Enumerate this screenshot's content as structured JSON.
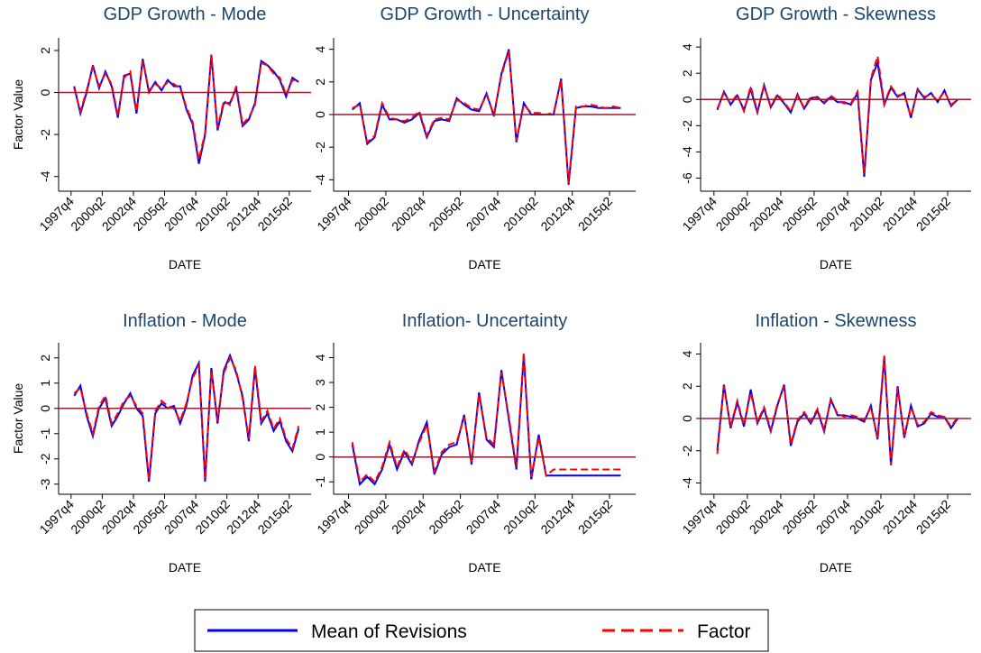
{
  "chart_data": [
    {
      "type": "line",
      "title": "GDP Growth - Mode",
      "ylabel": "Factor Value",
      "xlabel": "DATE",
      "x": [
        "1998q1",
        "1998q3",
        "1999q1",
        "1999q3",
        "2000q1",
        "2000q3",
        "2001q1",
        "2001q3",
        "2002q1",
        "2002q3",
        "2003q1",
        "2003q3",
        "2004q1",
        "2004q3",
        "2005q1",
        "2005q3",
        "2006q1",
        "2006q3",
        "2007q1",
        "2007q3",
        "2008q1",
        "2008q3",
        "2009q1",
        "2009q3",
        "2010q1",
        "2010q3",
        "2011q1",
        "2011q3",
        "2012q1",
        "2012q3",
        "2013q1",
        "2013q3",
        "2014q1",
        "2014q3",
        "2015q1",
        "2015q3",
        "2016q1"
      ],
      "xlim": [
        "1996q4",
        "2017q1"
      ],
      "xticks": [
        "1997q4",
        "2000q2",
        "2002q4",
        "2005q2",
        "2007q4",
        "2010q2",
        "2012q4",
        "2015q2"
      ],
      "ylim": [
        -4.7,
        2.6
      ],
      "yticks": [
        -4,
        -2,
        0,
        2
      ],
      "series": [
        {
          "name": "Mean of Revisions",
          "color": "#0000ff",
          "values": [
            0.3,
            -1.0,
            0.0,
            1.3,
            0.2,
            1.0,
            0.3,
            -1.2,
            0.8,
            0.9,
            -1.0,
            1.6,
            0.0,
            0.5,
            0.1,
            0.6,
            0.3,
            0.3,
            -0.8,
            -1.5,
            -3.4,
            -2.0,
            1.8,
            -1.8,
            -0.5,
            -0.5,
            0.2,
            -1.6,
            -1.3,
            -0.5,
            1.5,
            1.3,
            1.0,
            0.6,
            -0.2,
            0.7,
            0.5
          ]
        },
        {
          "name": "Factor",
          "color": "#ff0000",
          "values": [
            0.2,
            -0.9,
            0.1,
            1.2,
            0.3,
            0.9,
            0.4,
            -1.1,
            0.7,
            1.0,
            -0.9,
            1.5,
            0.1,
            0.4,
            0.2,
            0.5,
            0.4,
            0.2,
            -0.7,
            -1.4,
            -3.2,
            -1.9,
            1.8,
            -1.7,
            -0.4,
            -0.6,
            0.3,
            -1.5,
            -1.2,
            -0.6,
            1.4,
            1.3,
            0.9,
            0.7,
            -0.1,
            0.6,
            0.5
          ]
        }
      ]
    },
    {
      "type": "line",
      "title": "GDP Growth - Uncertainty",
      "xlabel": "DATE",
      "x": [
        "1998q1",
        "1998q3",
        "1999q1",
        "1999q3",
        "2000q1",
        "2000q3",
        "2001q1",
        "2001q3",
        "2002q1",
        "2002q3",
        "2003q1",
        "2003q3",
        "2004q1",
        "2004q3",
        "2005q1",
        "2005q3",
        "2006q1",
        "2006q3",
        "2007q1",
        "2007q3",
        "2008q1",
        "2008q3",
        "2009q1",
        "2009q3",
        "2010q1",
        "2010q3",
        "2011q1",
        "2011q3",
        "2012q1",
        "2012q3",
        "2013q1",
        "2013q3",
        "2014q1",
        "2014q3",
        "2015q1",
        "2015q3",
        "2016q1"
      ],
      "xlim": [
        "1996q4",
        "2017q1"
      ],
      "xticks": [
        "1997q4",
        "2000q2",
        "2002q4",
        "2005q2",
        "2007q4",
        "2010q2",
        "2012q4",
        "2015q2"
      ],
      "ylim": [
        -4.7,
        4.7
      ],
      "yticks": [
        -4,
        -2,
        0,
        2,
        4
      ],
      "series": [
        {
          "color": "#0000ff",
          "values": [
            0.3,
            0.7,
            -1.8,
            -1.4,
            0.6,
            -0.3,
            -0.3,
            -0.5,
            -0.3,
            0.1,
            -1.4,
            -0.4,
            -0.3,
            -0.4,
            1.0,
            0.6,
            0.3,
            0.2,
            1.3,
            -0.1,
            2.5,
            4.0,
            -1.7,
            0.7,
            0.0,
            0.0,
            0.0,
            0.0,
            2.2,
            -4.3,
            0.4,
            0.5,
            0.5,
            0.4,
            0.4,
            0.4,
            0.4
          ]
        },
        {
          "color": "#ff0000",
          "values": [
            0.4,
            0.6,
            -1.7,
            -1.3,
            0.7,
            -0.2,
            -0.3,
            -0.4,
            -0.2,
            0.2,
            -1.3,
            -0.3,
            -0.2,
            -0.3,
            0.9,
            0.7,
            0.4,
            0.3,
            1.2,
            0.0,
            2.4,
            3.9,
            -1.6,
            0.6,
            0.1,
            0.1,
            0.0,
            0.1,
            2.1,
            -4.2,
            0.5,
            0.5,
            0.6,
            0.5,
            0.4,
            0.5,
            0.4
          ]
        }
      ]
    },
    {
      "type": "line",
      "title": "GDP Growth - Skewness",
      "xlabel": "DATE",
      "x": [
        "1998q1",
        "1998q3",
        "1999q1",
        "1999q3",
        "2000q1",
        "2000q3",
        "2001q1",
        "2001q3",
        "2002q1",
        "2002q3",
        "2003q1",
        "2003q3",
        "2004q1",
        "2004q3",
        "2005q1",
        "2005q3",
        "2006q1",
        "2006q3",
        "2007q1",
        "2007q3",
        "2008q1",
        "2008q3",
        "2009q1",
        "2009q3",
        "2010q1",
        "2010q3",
        "2011q1",
        "2011q3",
        "2012q1",
        "2012q3",
        "2013q1",
        "2013q3",
        "2014q1",
        "2014q3",
        "2015q1",
        "2015q3",
        "2016q1"
      ],
      "xlim": [
        "1996q4",
        "2017q1"
      ],
      "xticks": [
        "1997q4",
        "2000q2",
        "2002q4",
        "2005q2",
        "2007q4",
        "2010q2",
        "2012q4",
        "2015q2"
      ],
      "ylim": [
        -7,
        4.7
      ],
      "yticks": [
        -6,
        -4,
        -2,
        0,
        2,
        4
      ],
      "series": [
        {
          "color": "#0000ff",
          "values": [
            -0.8,
            0.6,
            -0.4,
            0.3,
            -0.8,
            0.8,
            -1.0,
            1.1,
            -0.6,
            0.3,
            -0.3,
            -1.0,
            0.4,
            -0.7,
            0.1,
            0.2,
            -0.3,
            0.2,
            -0.2,
            -0.2,
            -0.4,
            0.5,
            -5.9,
            1.5,
            2.8,
            -0.4,
            0.9,
            0.2,
            0.5,
            -1.4,
            0.8,
            0.1,
            0.5,
            -0.2,
            0.7,
            -0.5,
            0.0
          ]
        },
        {
          "color": "#ff0000",
          "values": [
            -0.7,
            0.5,
            -0.3,
            0.4,
            -0.9,
            1.0,
            -0.9,
            1.0,
            -0.5,
            0.4,
            -0.2,
            -0.9,
            0.3,
            -0.6,
            0.2,
            0.1,
            -0.2,
            0.3,
            -0.1,
            -0.3,
            -0.3,
            0.6,
            -5.7,
            1.6,
            3.3,
            -0.3,
            1.0,
            0.3,
            0.4,
            -1.3,
            0.7,
            0.2,
            0.4,
            -0.1,
            0.6,
            -0.4,
            0.0
          ]
        }
      ]
    },
    {
      "type": "line",
      "title": "Inflation - Mode",
      "ylabel": "Factor Value",
      "xlabel": "DATE",
      "x": [
        "1998q1",
        "1998q3",
        "1999q1",
        "1999q3",
        "2000q1",
        "2000q3",
        "2001q1",
        "2001q3",
        "2002q1",
        "2002q3",
        "2003q1",
        "2003q3",
        "2004q1",
        "2004q3",
        "2005q1",
        "2005q3",
        "2006q1",
        "2006q3",
        "2007q1",
        "2007q3",
        "2008q1",
        "2008q3",
        "2009q1",
        "2009q3",
        "2010q1",
        "2010q3",
        "2011q1",
        "2011q3",
        "2012q1",
        "2012q3",
        "2013q1",
        "2013q3",
        "2014q1",
        "2014q3",
        "2015q1",
        "2015q3",
        "2016q1"
      ],
      "xlim": [
        "1996q4",
        "2017q1"
      ],
      "xticks": [
        "1997q4",
        "2000q2",
        "2002q4",
        "2005q2",
        "2007q4",
        "2010q2",
        "2012q4",
        "2015q2"
      ],
      "ylim": [
        -3.4,
        2.6
      ],
      "yticks": [
        -3,
        -2,
        -1,
        0,
        1,
        2
      ],
      "series": [
        {
          "color": "#0000ff",
          "values": [
            0.5,
            0.9,
            -0.3,
            -1.1,
            0.0,
            0.4,
            -0.7,
            -0.3,
            0.2,
            0.6,
            0.0,
            -0.3,
            -2.9,
            -0.2,
            0.2,
            0.0,
            0.1,
            -0.6,
            0.1,
            1.3,
            1.8,
            -2.9,
            1.6,
            -0.6,
            1.5,
            2.1,
            1.4,
            0.5,
            -1.3,
            1.6,
            -0.6,
            -0.2,
            -0.9,
            -0.5,
            -1.3,
            -1.7,
            -0.8
          ]
        },
        {
          "color": "#ff0000",
          "values": [
            0.6,
            0.8,
            -0.2,
            -1.0,
            0.1,
            0.5,
            -0.6,
            -0.2,
            0.3,
            0.5,
            0.1,
            -0.2,
            -2.8,
            -0.1,
            0.3,
            0.1,
            0.0,
            -0.5,
            0.2,
            1.2,
            1.7,
            -2.8,
            1.5,
            -0.5,
            1.4,
            2.0,
            1.5,
            0.4,
            -1.2,
            1.7,
            -0.5,
            -0.1,
            -0.8,
            -0.4,
            -1.2,
            -1.6,
            -0.7
          ]
        }
      ]
    },
    {
      "type": "line",
      "title": "Inflation- Uncertainty",
      "xlabel": "DATE",
      "x": [
        "1998q1",
        "1998q3",
        "1999q1",
        "1999q3",
        "2000q1",
        "2000q3",
        "2001q1",
        "2001q3",
        "2002q1",
        "2002q3",
        "2003q1",
        "2003q3",
        "2004q1",
        "2004q3",
        "2005q1",
        "2005q3",
        "2006q1",
        "2006q3",
        "2007q1",
        "2007q3",
        "2008q1",
        "2008q3",
        "2009q1",
        "2009q3",
        "2010q1",
        "2010q3",
        "2011q1",
        "2011q3",
        "2012q1",
        "2012q3",
        "2013q1",
        "2013q3",
        "2014q1",
        "2014q3",
        "2015q1",
        "2015q3",
        "2016q1"
      ],
      "xlim": [
        "1996q4",
        "2017q1"
      ],
      "xticks": [
        "1997q4",
        "2000q2",
        "2002q4",
        "2005q2",
        "2007q4",
        "2010q2",
        "2012q4",
        "2015q2"
      ],
      "ylim": [
        -1.5,
        4.6
      ],
      "yticks": [
        -1,
        0,
        1,
        2,
        3,
        4
      ],
      "series": [
        {
          "color": "#0000ff",
          "values": [
            0.5,
            -1.1,
            -0.8,
            -1.1,
            -0.5,
            0.5,
            -0.5,
            0.2,
            -0.3,
            0.7,
            1.4,
            -0.7,
            0.1,
            0.4,
            0.5,
            1.7,
            -0.3,
            2.6,
            0.7,
            0.4,
            3.5,
            1.5,
            -0.5,
            4.1,
            -0.9,
            0.9,
            -0.75,
            -0.75,
            -0.75,
            -0.75,
            -0.75,
            -0.75,
            -0.75,
            -0.75,
            -0.75,
            -0.75,
            -0.75
          ]
        },
        {
          "color": "#ff0000",
          "values": [
            0.6,
            -1.0,
            -0.7,
            -1.0,
            -0.4,
            0.6,
            -0.4,
            0.3,
            -0.2,
            0.6,
            1.3,
            -0.6,
            0.2,
            0.5,
            0.6,
            1.6,
            -0.2,
            2.5,
            0.8,
            0.5,
            3.4,
            1.6,
            -0.4,
            4.2,
            -0.8,
            0.8,
            -0.75,
            -0.5,
            -0.5,
            -0.5,
            -0.5,
            -0.5,
            -0.5,
            -0.5,
            -0.5,
            -0.5,
            -0.5
          ]
        }
      ]
    },
    {
      "type": "line",
      "title": "Inflation - Skewness",
      "xlabel": "DATE",
      "x": [
        "1998q1",
        "1998q3",
        "1999q1",
        "1999q3",
        "2000q1",
        "2000q3",
        "2001q1",
        "2001q3",
        "2002q1",
        "2002q3",
        "2003q1",
        "2003q3",
        "2004q1",
        "2004q3",
        "2005q1",
        "2005q3",
        "2006q1",
        "2006q3",
        "2007q1",
        "2007q3",
        "2008q1",
        "2008q3",
        "2009q1",
        "2009q3",
        "2010q1",
        "2010q3",
        "2011q1",
        "2011q3",
        "2012q1",
        "2012q3",
        "2013q1",
        "2013q3",
        "2014q1",
        "2014q3",
        "2015q1",
        "2015q3",
        "2016q1"
      ],
      "xlim": [
        "1996q4",
        "2017q1"
      ],
      "xticks": [
        "1997q4",
        "2000q2",
        "2002q4",
        "2005q2",
        "2007q4",
        "2010q2",
        "2012q4",
        "2015q2"
      ],
      "ylim": [
        -4.7,
        4.7
      ],
      "yticks": [
        -4,
        -2,
        0,
        2,
        4
      ],
      "series": [
        {
          "color": "#0000ff",
          "values": [
            -2.0,
            2.1,
            -0.6,
            1.0,
            -0.5,
            1.8,
            -0.3,
            0.6,
            -0.8,
            0.8,
            2.1,
            -1.7,
            -0.2,
            0.3,
            -0.3,
            0.5,
            -0.8,
            1.2,
            0.2,
            0.2,
            0.1,
            0.0,
            -0.2,
            0.8,
            -1.3,
            3.8,
            -2.9,
            2.0,
            -1.2,
            0.8,
            -0.5,
            -0.3,
            0.3,
            0.1,
            0.1,
            -0.6,
            0.0
          ]
        },
        {
          "color": "#ff0000",
          "values": [
            -2.2,
            2.0,
            -0.5,
            1.1,
            -0.4,
            1.6,
            -0.2,
            0.7,
            -0.7,
            0.9,
            2.0,
            -1.6,
            -0.1,
            0.4,
            -0.2,
            0.6,
            -0.7,
            1.1,
            0.3,
            0.1,
            0.2,
            0.1,
            -0.1,
            0.7,
            -1.2,
            3.9,
            -2.9,
            1.9,
            -1.1,
            0.7,
            -0.4,
            -0.2,
            0.4,
            0.2,
            0.1,
            -0.5,
            0.1
          ]
        }
      ]
    }
  ]
}
